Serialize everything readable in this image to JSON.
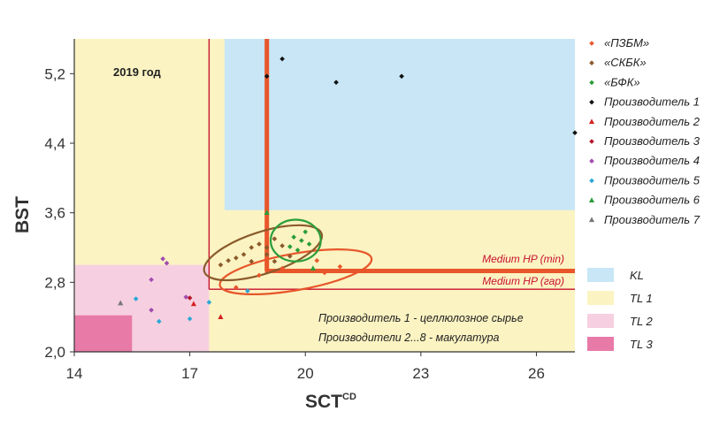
{
  "chart_data": {
    "type": "scatter",
    "title": "",
    "year_label": "2019 год",
    "xlabel": "SCT",
    "xlabel_sup": "CD",
    "ylabel": "BST",
    "xlim": [
      14,
      27
    ],
    "ylim": [
      2.0,
      5.6
    ],
    "xticks": [
      14,
      17,
      20,
      23,
      26
    ],
    "xtick_labels": [
      "14",
      "17",
      "20",
      "23",
      "26"
    ],
    "yticks": [
      2.0,
      2.8,
      3.6,
      4.4,
      5.2
    ],
    "ytick_labels": [
      "2,0",
      "2,8",
      "3,6",
      "4,4",
      "5,2"
    ],
    "grid": false,
    "legend_position": "right",
    "colors": {
      "KL": "#c8e6f5",
      "TL1": "#fbf3c2",
      "TL2": "#f6d0e0",
      "TL3": "#e87aa8",
      "hp_thick": "#e8562a",
      "hp_thin": "#c8102e",
      "ellipse_pzbm": "#e8562a",
      "ellipse_skbk": "#8b5a2b",
      "ellipse_bfk": "#2a9d3a"
    },
    "regions": [
      {
        "label": "KL",
        "color": "#c8e6f5",
        "x": [
          17.9,
          27
        ],
        "y": [
          3.63,
          5.6
        ]
      },
      {
        "label": "TL 1",
        "color": "#fbf3c2",
        "x": [
          14,
          27
        ],
        "y": [
          2.0,
          5.6
        ]
      },
      {
        "label": "TL 2",
        "color": "#f6d0e0",
        "x": [
          14,
          17.5
        ],
        "y": [
          2.0,
          3.0
        ]
      },
      {
        "label": "TL 3",
        "color": "#e87aa8",
        "x": [
          14,
          15.5
        ],
        "y": [
          2.0,
          2.42
        ]
      }
    ],
    "legend": [
      {
        "label": "«ПЗБМ»",
        "color": "#e8562a",
        "marker": "diamond"
      },
      {
        "label": "«СКБК»",
        "color": "#8b5a2b",
        "marker": "diamond"
      },
      {
        "label": "«БФК»",
        "color": "#2a9d3a",
        "marker": "diamond"
      },
      {
        "label": "Производитель 1",
        "color": "#111111",
        "marker": "diamond"
      },
      {
        "label": "Производитель 2",
        "color": "#d42020",
        "marker": "triangle"
      },
      {
        "label": "Производитель 3",
        "color": "#b5162a",
        "marker": "diamond"
      },
      {
        "label": "Производитель 4",
        "color": "#a24bb0",
        "marker": "diamond"
      },
      {
        "label": "Производитель 5",
        "color": "#2aa7d8",
        "marker": "diamond"
      },
      {
        "label": "Производитель 6",
        "color": "#2a9d3a",
        "marker": "triangle"
      },
      {
        "label": "Производитель 7",
        "color": "#777777",
        "marker": "triangle"
      }
    ],
    "region_legend": [
      {
        "label": "KL",
        "color": "#c8e6f5"
      },
      {
        "label": "TL 1",
        "color": "#fbf3c2"
      },
      {
        "label": "TL 2",
        "color": "#f6d0e0"
      },
      {
        "label": "TL 3",
        "color": "#e87aa8"
      }
    ],
    "lines": {
      "medium_hp_min": {
        "label": "Medium HP (min)",
        "x": 19.0,
        "y": 2.93,
        "color": "#e8562a"
      },
      "medium_hp_gar": {
        "label": "Medium HP (гар)",
        "x": 17.5,
        "y": 2.72,
        "color": "#c8102e"
      }
    },
    "annotations": [
      "Производитель 1 - целлюлозное сырье",
      "Производители 2...8 - макулатура"
    ],
    "ellipses": [
      {
        "name": "«ПЗБМ»",
        "cx": 19.75,
        "cy": 2.92,
        "rx": 2.0,
        "ry": 0.21,
        "rotate": -10,
        "color": "#e8562a"
      },
      {
        "name": "«СКБК»",
        "cx": 18.9,
        "cy": 3.14,
        "rx": 1.6,
        "ry": 0.24,
        "rotate": -18,
        "color": "#8b5a2b"
      },
      {
        "name": "«БФК»",
        "cx": 19.75,
        "cy": 3.28,
        "rx": 0.65,
        "ry": 0.24,
        "rotate": 0,
        "color": "#2a9d3a"
      }
    ],
    "series": [
      {
        "name": "«ПЗБМ»",
        "color": "#e8562a",
        "marker": "diamond",
        "points": [
          [
            18.2,
            2.74
          ],
          [
            18.8,
            2.88
          ],
          [
            19.4,
            2.96
          ],
          [
            20.3,
            3.05
          ],
          [
            20.9,
            2.98
          ],
          [
            20.5,
            2.91
          ]
        ]
      },
      {
        "name": "«СКБК»",
        "color": "#8b5a2b",
        "marker": "diamond",
        "points": [
          [
            17.8,
            3.0
          ],
          [
            18.0,
            3.05
          ],
          [
            18.2,
            3.08
          ],
          [
            18.4,
            3.12
          ],
          [
            18.6,
            3.2
          ],
          [
            18.8,
            3.24
          ],
          [
            19.0,
            3.2
          ],
          [
            19.2,
            3.3
          ],
          [
            19.4,
            3.22
          ],
          [
            19.0,
            3.12
          ],
          [
            18.6,
            3.04
          ],
          [
            19.2,
            3.04
          ],
          [
            19.6,
            3.1
          ]
        ]
      },
      {
        "name": "«БФК»",
        "color": "#2a9d3a",
        "marker": "diamond",
        "points": [
          [
            19.7,
            3.32
          ],
          [
            19.9,
            3.28
          ],
          [
            19.6,
            3.21
          ],
          [
            20.0,
            3.38
          ],
          [
            19.8,
            3.17
          ],
          [
            20.1,
            3.24
          ]
        ]
      },
      {
        "name": "Производитель 1",
        "color": "#111111",
        "marker": "diamond",
        "points": [
          [
            19.0,
            5.17
          ],
          [
            19.4,
            5.37
          ],
          [
            20.8,
            5.1
          ],
          [
            22.5,
            5.17
          ],
          [
            27.0,
            4.52
          ]
        ]
      },
      {
        "name": "Производитель 2",
        "color": "#d42020",
        "marker": "triangle",
        "points": [
          [
            17.8,
            2.4
          ],
          [
            17.1,
            2.55
          ]
        ]
      },
      {
        "name": "Производитель 3",
        "color": "#b5162a",
        "marker": "diamond",
        "points": [
          [
            17.0,
            2.62
          ]
        ]
      },
      {
        "name": "Производитель 4",
        "color": "#a24bb0",
        "marker": "diamond",
        "points": [
          [
            16.3,
            3.07
          ],
          [
            16.4,
            3.02
          ],
          [
            16.0,
            2.83
          ],
          [
            16.9,
            2.63
          ],
          [
            16.0,
            2.48
          ]
        ]
      },
      {
        "name": "Производитель 5",
        "color": "#2aa7d8",
        "marker": "diamond",
        "points": [
          [
            15.6,
            2.61
          ],
          [
            16.2,
            2.35
          ],
          [
            17.5,
            2.57
          ],
          [
            17.0,
            2.38
          ],
          [
            18.5,
            2.7
          ]
        ]
      },
      {
        "name": "Производитель 6",
        "color": "#2a9d3a",
        "marker": "triangle",
        "points": [
          [
            19.0,
            3.6
          ],
          [
            20.2,
            2.96
          ]
        ]
      },
      {
        "name": "Производитель 7",
        "color": "#777777",
        "marker": "triangle",
        "points": [
          [
            15.2,
            2.56
          ]
        ]
      }
    ]
  }
}
